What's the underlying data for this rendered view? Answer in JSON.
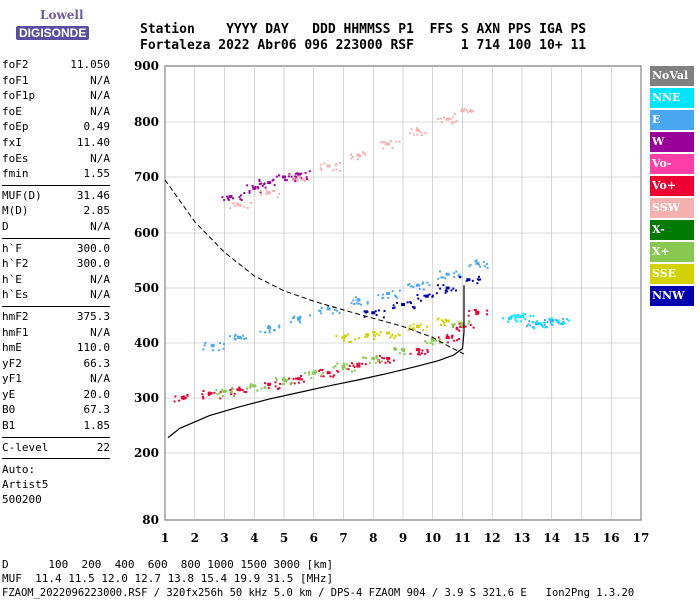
{
  "logo": {
    "line1": "Lowell",
    "line2": "DIGISONDE"
  },
  "header": {
    "line1": "Station    YYYY DAY   DDD HHMMSS P1  FFS S AXN PPS IGA PS",
    "line2": "Fortaleza 2022 Abr06 096 223000 RSF      1 714 100 10+ 11"
  },
  "params": {
    "group1": [
      {
        "k": "foF2",
        "v": "11.050"
      },
      {
        "k": "foF1",
        "v": "N/A"
      },
      {
        "k": "foF1p",
        "v": "N/A"
      },
      {
        "k": "foE",
        "v": "N/A"
      },
      {
        "k": "foEp",
        "v": "0.49"
      },
      {
        "k": "fxI",
        "v": "11.40"
      },
      {
        "k": "foEs",
        "v": "N/A"
      },
      {
        "k": "fmin",
        "v": "1.55"
      }
    ],
    "group2": [
      {
        "k": "MUF(D)",
        "v": "31.46"
      },
      {
        "k": "M(D)",
        "v": "2.85"
      },
      {
        "k": "D",
        "v": "N/A"
      }
    ],
    "group3": [
      {
        "k": "h`F",
        "v": "300.0"
      },
      {
        "k": "h`F2",
        "v": "300.0"
      },
      {
        "k": "h`E",
        "v": "N/A"
      },
      {
        "k": "h`Es",
        "v": "N/A"
      }
    ],
    "group4": [
      {
        "k": "hmF2",
        "v": "375.3"
      },
      {
        "k": "hmF1",
        "v": "N/A"
      },
      {
        "k": "hmE",
        "v": "110.0"
      },
      {
        "k": "yF2",
        "v": "66.3"
      },
      {
        "k": "yF1",
        "v": "N/A"
      },
      {
        "k": "yE",
        "v": "20.0"
      },
      {
        "k": "B0",
        "v": "67.3"
      },
      {
        "k": "B1",
        "v": "1.85"
      }
    ],
    "group5": [
      {
        "k": "C-level",
        "v": "22"
      }
    ],
    "auto": [
      "Auto:",
      "Artist5",
      "500200"
    ]
  },
  "legend": [
    {
      "label": "NoVal",
      "color": "#808080"
    },
    {
      "label": "NNE",
      "color": "#00e5ff"
    },
    {
      "label": "E",
      "color": "#4aa8f0"
    },
    {
      "label": "W",
      "color": "#9a009a"
    },
    {
      "label": "Vo-",
      "color": "#ff3fa8"
    },
    {
      "label": "Vo+",
      "color": "#ee0033"
    },
    {
      "label": "SSW",
      "color": "#f5b0b0"
    },
    {
      "label": "X-",
      "color": "#007a00"
    },
    {
      "label": "X+",
      "color": "#88c850"
    },
    {
      "label": "SSE",
      "color": "#d2d200"
    },
    {
      "label": "NNW",
      "color": "#0000b0"
    }
  ],
  "chart_data": {
    "type": "scatter",
    "x_ticks": [
      "1",
      "2",
      "3",
      "4",
      "5",
      "6",
      "7",
      "8",
      "9",
      "10",
      "11",
      "12",
      "13",
      "14",
      "15",
      "16",
      "17"
    ],
    "y_ticks": [
      "80",
      "200",
      "300",
      "400",
      "500",
      "600",
      "700",
      "800",
      "900"
    ],
    "xlim": [
      1,
      17
    ],
    "ylim": [
      80,
      900
    ],
    "y_scale": "nonlinear",
    "grid": true,
    "traces": [
      {
        "name": "Vo+",
        "color": "#ee0033",
        "points": [
          [
            1.6,
            301
          ],
          [
            2.5,
            308
          ],
          [
            3.5,
            315
          ],
          [
            4.5,
            325
          ],
          [
            5.5,
            335
          ],
          [
            6.5,
            346
          ],
          [
            7.5,
            358
          ],
          [
            8.5,
            372
          ],
          [
            9.5,
            388
          ],
          [
            10.5,
            410
          ],
          [
            11.0,
            430
          ],
          [
            11.5,
            455
          ]
        ]
      },
      {
        "name": "X+",
        "color": "#88c850",
        "points": [
          [
            3.0,
            312
          ],
          [
            4.0,
            322
          ],
          [
            5.0,
            333
          ],
          [
            6.0,
            345
          ],
          [
            7.0,
            357
          ],
          [
            8.0,
            372
          ],
          [
            9.0,
            388
          ],
          [
            10.0,
            405
          ],
          [
            11.0,
            435
          ]
        ]
      },
      {
        "name": "W",
        "color": "#9a009a",
        "points": [
          [
            3.2,
            665
          ],
          [
            4.0,
            680
          ],
          [
            4.5,
            690
          ],
          [
            5.0,
            700
          ],
          [
            5.5,
            705
          ]
        ]
      },
      {
        "name": "SSW",
        "color": "#f5b0b0",
        "points": [
          [
            3.5,
            650
          ],
          [
            4.5,
            672
          ],
          [
            5.5,
            700
          ],
          [
            6.5,
            720
          ],
          [
            7.5,
            740
          ],
          [
            8.5,
            760
          ],
          [
            9.5,
            785
          ],
          [
            10.5,
            805
          ],
          [
            11.0,
            820
          ]
        ]
      },
      {
        "name": "E",
        "color": "#4aa8f0",
        "points": [
          [
            2.6,
            395
          ],
          [
            3.5,
            410
          ],
          [
            4.5,
            428
          ],
          [
            5.5,
            445
          ],
          [
            6.5,
            462
          ],
          [
            7.5,
            478
          ],
          [
            8.5,
            490
          ],
          [
            9.5,
            505
          ],
          [
            10.5,
            525
          ],
          [
            11.5,
            545
          ],
          [
            13.5,
            435
          ],
          [
            14.0,
            440
          ]
        ]
      },
      {
        "name": "NNE",
        "color": "#00e5ff",
        "points": [
          [
            12.6,
            445
          ],
          [
            13.0,
            448
          ],
          [
            13.6,
            435
          ],
          [
            14.2,
            440
          ]
        ]
      },
      {
        "name": "SSE",
        "color": "#d2d200",
        "points": [
          [
            7.0,
            410
          ],
          [
            7.8,
            415
          ],
          [
            8.5,
            418
          ],
          [
            9.5,
            430
          ],
          [
            10.5,
            440
          ]
        ]
      },
      {
        "name": "NNW",
        "color": "#0000b0",
        "points": [
          [
            8.0,
            455
          ],
          [
            9.0,
            470
          ],
          [
            9.8,
            485
          ],
          [
            10.5,
            500
          ],
          [
            11.2,
            515
          ]
        ]
      }
    ],
    "profile": [
      [
        1.1,
        228
      ],
      [
        1.5,
        245
      ],
      [
        2.5,
        268
      ],
      [
        3.5,
        284
      ],
      [
        4.5,
        298
      ],
      [
        5.5,
        310
      ],
      [
        6.5,
        322
      ],
      [
        7.5,
        333
      ],
      [
        8.5,
        345
      ],
      [
        9.5,
        358
      ],
      [
        10.2,
        368
      ],
      [
        10.7,
        378
      ],
      [
        11.0,
        390
      ],
      [
        11.05,
        420
      ],
      [
        11.05,
        505
      ]
    ],
    "muf_curve": [
      [
        1.0,
        695
      ],
      [
        2.0,
        620
      ],
      [
        3.0,
        565
      ],
      [
        4.0,
        522
      ],
      [
        5.0,
        495
      ],
      [
        6.0,
        476
      ],
      [
        7.0,
        460
      ],
      [
        8.0,
        445
      ],
      [
        9.0,
        430
      ],
      [
        10.0,
        410
      ],
      [
        10.6,
        392
      ],
      [
        11.05,
        380
      ]
    ]
  },
  "footer": {
    "line1": "D      100  200  400  600  800 1000 1500 3000 [km]",
    "line2": "MUF  11.4 11.5 12.0 12.7 13.8 15.4 19.9 31.5 [MHz]",
    "line3": "FZAOM_2022096223000.RSF / 320fx256h 50 kHz 5.0 km / DPS-4 FZAOM 904 / 3.9 S 321.6 E   Ion2Png 1.3.20"
  }
}
